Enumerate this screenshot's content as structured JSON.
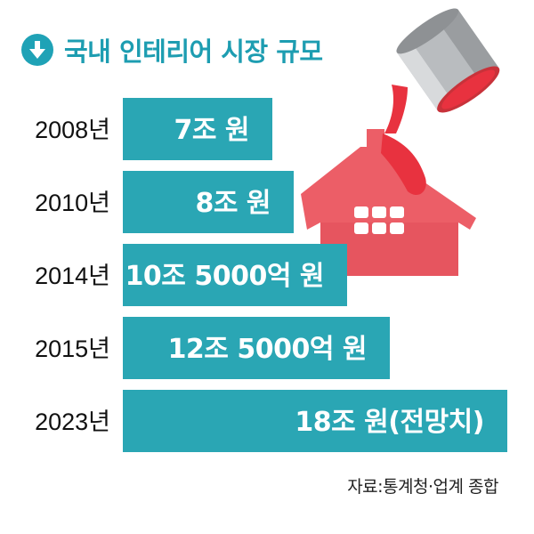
{
  "title": "국내 인테리어 시장 규모",
  "source": "자료:통계청·업계 종합",
  "icons": {
    "title": "arrow-down-circle-icon",
    "illustration": "paint-can-house-icon"
  },
  "colors": {
    "bar": "#2aa6b4",
    "title": "#1d9db1",
    "paint": "#e8323f",
    "house": "#ec5e67"
  },
  "chart_data": {
    "type": "bar",
    "orientation": "horizontal",
    "categories": [
      "2008년",
      "2010년",
      "2014년",
      "2015년",
      "2023년"
    ],
    "values": [
      7,
      8,
      10.5,
      12.5,
      18
    ],
    "value_labels": [
      "7조 원",
      "8조 원",
      "10조 5000억 원",
      "12조 5000억 원",
      "18조 원(전망치)"
    ],
    "title": "국내 인테리어 시장 규모",
    "unit": "조 원",
    "grid": false
  }
}
